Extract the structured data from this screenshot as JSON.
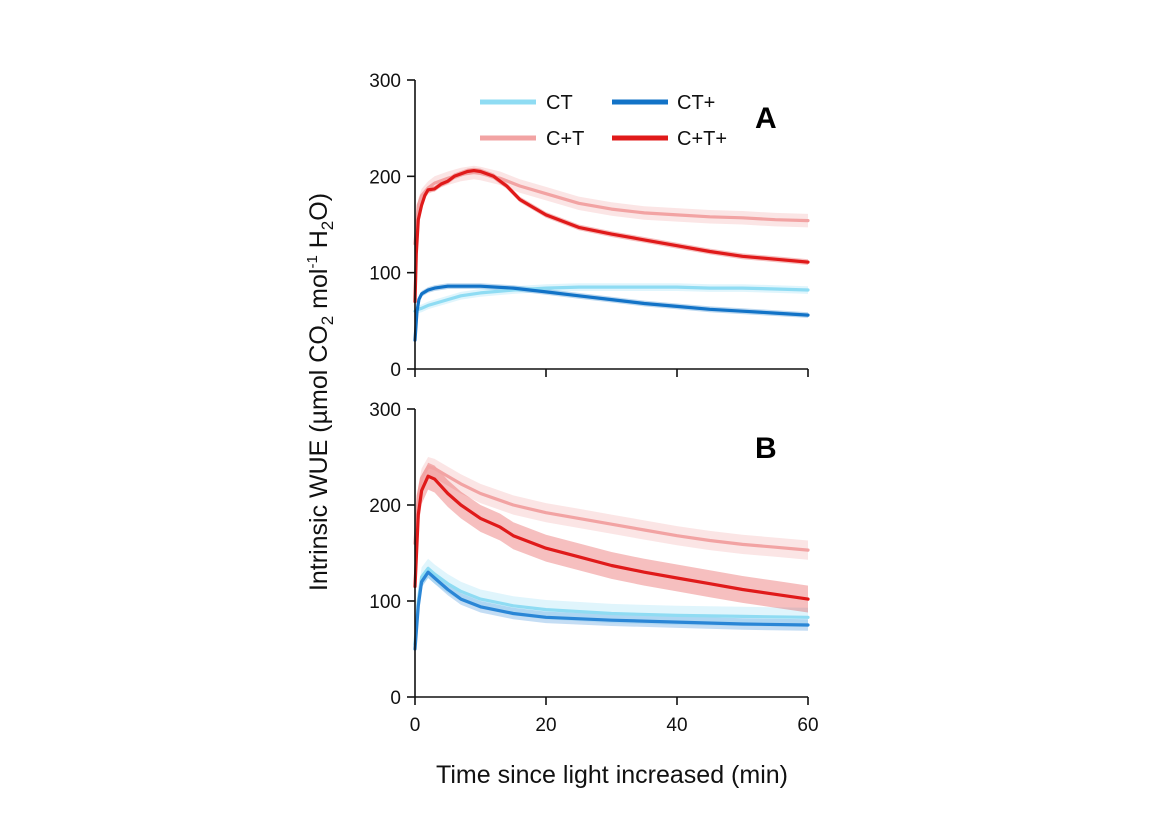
{
  "chart_data": [
    {
      "type": "line",
      "panel": "A",
      "xlabel": "Time since light increased (min)",
      "ylabel_main": "Intrinsic WUE (µmol CO",
      "ylabel_sub2": "2",
      "ylabel_mid": " mol",
      "ylabel_sup": "-1",
      "ylabel_h2o": " H",
      "ylabel_o": "O)",
      "xlim": [
        0,
        60
      ],
      "ylim": [
        0,
        300
      ],
      "xticks": [
        "0",
        "20",
        "40",
        "60"
      ],
      "yticks": [
        "0",
        "100",
        "200",
        "300"
      ],
      "legend_placement": "top-right",
      "show_x_tick_labels": false,
      "series": [
        {
          "name": "CT",
          "color": "#8fdcf3",
          "band": 4,
          "points": [
            [
              0,
              60
            ],
            [
              0.5,
              62
            ],
            [
              1,
              63
            ],
            [
              2,
              66
            ],
            [
              3,
              68
            ],
            [
              5,
              72
            ],
            [
              7,
              76
            ],
            [
              10,
              79
            ],
            [
              15,
              82
            ],
            [
              20,
              84
            ],
            [
              25,
              85
            ],
            [
              30,
              85
            ],
            [
              35,
              85
            ],
            [
              40,
              85
            ],
            [
              45,
              84
            ],
            [
              50,
              84
            ],
            [
              55,
              83
            ],
            [
              60,
              82
            ]
          ]
        },
        {
          "name": "CT+",
          "color": "#1273c7",
          "band": 3,
          "points": [
            [
              0,
              30
            ],
            [
              0.3,
              60
            ],
            [
              0.6,
              72
            ],
            [
              1,
              78
            ],
            [
              2,
              82
            ],
            [
              3,
              84
            ],
            [
              5,
              86
            ],
            [
              7,
              86
            ],
            [
              10,
              86
            ],
            [
              15,
              84
            ],
            [
              20,
              80
            ],
            [
              25,
              76
            ],
            [
              30,
              72
            ],
            [
              35,
              68
            ],
            [
              40,
              65
            ],
            [
              45,
              62
            ],
            [
              50,
              60
            ],
            [
              55,
              58
            ],
            [
              60,
              56
            ]
          ]
        },
        {
          "name": "C+T",
          "color": "#f2a3a3",
          "band": 7,
          "points": [
            [
              0,
              130
            ],
            [
              0.5,
              170
            ],
            [
              1,
              180
            ],
            [
              2,
              188
            ],
            [
              3,
              193
            ],
            [
              5,
              198
            ],
            [
              7,
              202
            ],
            [
              9,
              204
            ],
            [
              10,
              203
            ],
            [
              13,
              198
            ],
            [
              16,
              190
            ],
            [
              20,
              182
            ],
            [
              25,
              172
            ],
            [
              30,
              166
            ],
            [
              35,
              162
            ],
            [
              40,
              160
            ],
            [
              45,
              158
            ],
            [
              50,
              157
            ],
            [
              55,
              155
            ],
            [
              60,
              154
            ]
          ]
        },
        {
          "name": "C+T+",
          "color": "#e01a1a",
          "band": 3,
          "points": [
            [
              0,
              70
            ],
            [
              0.2,
              120
            ],
            [
              0.5,
              155
            ],
            [
              1,
              170
            ],
            [
              1.5,
              180
            ],
            [
              2,
              186
            ],
            [
              3,
              187
            ],
            [
              4,
              192
            ],
            [
              5,
              195
            ],
            [
              6,
              200
            ],
            [
              8,
              205
            ],
            [
              9,
              206
            ],
            [
              10,
              205
            ],
            [
              12,
              200
            ],
            [
              14,
              190
            ],
            [
              16,
              176
            ],
            [
              18,
              168
            ],
            [
              20,
              160
            ],
            [
              25,
              147
            ],
            [
              30,
              140
            ],
            [
              35,
              134
            ],
            [
              40,
              128
            ],
            [
              45,
              122
            ],
            [
              50,
              117
            ],
            [
              55,
              114
            ],
            [
              60,
              111
            ]
          ]
        }
      ]
    },
    {
      "type": "line",
      "panel": "B",
      "xlabel": "Time since light increased (min)",
      "xlim": [
        0,
        60
      ],
      "ylim": [
        0,
        300
      ],
      "xticks": [
        "0",
        "20",
        "40",
        "60"
      ],
      "yticks": [
        "0",
        "100",
        "200",
        "300"
      ],
      "show_x_tick_labels": true,
      "series": [
        {
          "name": "CT",
          "color": "#8fdcf3",
          "band": 10,
          "points": [
            [
              0,
              55
            ],
            [
              0.5,
              100
            ],
            [
              1,
              125
            ],
            [
              2,
              134
            ],
            [
              3,
              128
            ],
            [
              5,
              118
            ],
            [
              7,
              110
            ],
            [
              10,
              102
            ],
            [
              15,
              95
            ],
            [
              20,
              91
            ],
            [
              30,
              87
            ],
            [
              40,
              85
            ],
            [
              50,
              84
            ],
            [
              60,
              83
            ]
          ]
        },
        {
          "name": "CT+",
          "color": "#2a86d6",
          "band": 6,
          "points": [
            [
              0,
              50
            ],
            [
              0.5,
              95
            ],
            [
              1,
              120
            ],
            [
              2,
              130
            ],
            [
              3,
              124
            ],
            [
              5,
              112
            ],
            [
              7,
              102
            ],
            [
              10,
              94
            ],
            [
              15,
              87
            ],
            [
              20,
              83
            ],
            [
              30,
              80
            ],
            [
              40,
              78
            ],
            [
              50,
              76
            ],
            [
              60,
              75
            ]
          ]
        },
        {
          "name": "C+T",
          "color": "#f2a3a3",
          "band": 10,
          "points": [
            [
              0,
              160
            ],
            [
              0.5,
              210
            ],
            [
              1,
              228
            ],
            [
              2,
              240
            ],
            [
              3,
              238
            ],
            [
              5,
              230
            ],
            [
              7,
              222
            ],
            [
              10,
              212
            ],
            [
              15,
              200
            ],
            [
              20,
              192
            ],
            [
              25,
              186
            ],
            [
              30,
              180
            ],
            [
              35,
              174
            ],
            [
              40,
              168
            ],
            [
              45,
              163
            ],
            [
              50,
              159
            ],
            [
              55,
              156
            ],
            [
              60,
              153
            ]
          ]
        },
        {
          "name": "C+T+",
          "color": "#e01a1a",
          "band": 14,
          "points": [
            [
              0,
              115
            ],
            [
              0.5,
              190
            ],
            [
              1,
              215
            ],
            [
              2,
              230
            ],
            [
              3,
              227
            ],
            [
              5,
              212
            ],
            [
              7,
              200
            ],
            [
              10,
              186
            ],
            [
              13,
              177
            ],
            [
              15,
              168
            ],
            [
              20,
              155
            ],
            [
              25,
              146
            ],
            [
              30,
              137
            ],
            [
              35,
              130
            ],
            [
              40,
              124
            ],
            [
              45,
              118
            ],
            [
              50,
              112
            ],
            [
              55,
              107
            ],
            [
              60,
              102
            ]
          ]
        }
      ]
    }
  ],
  "panels": {
    "A": {
      "letter": "A"
    },
    "B": {
      "letter": "B"
    }
  },
  "legend": {
    "ct": "CT",
    "ct_plus": "CT+",
    "c_plus_t": "C+T",
    "c_plus_t_plus": "C+T+"
  }
}
